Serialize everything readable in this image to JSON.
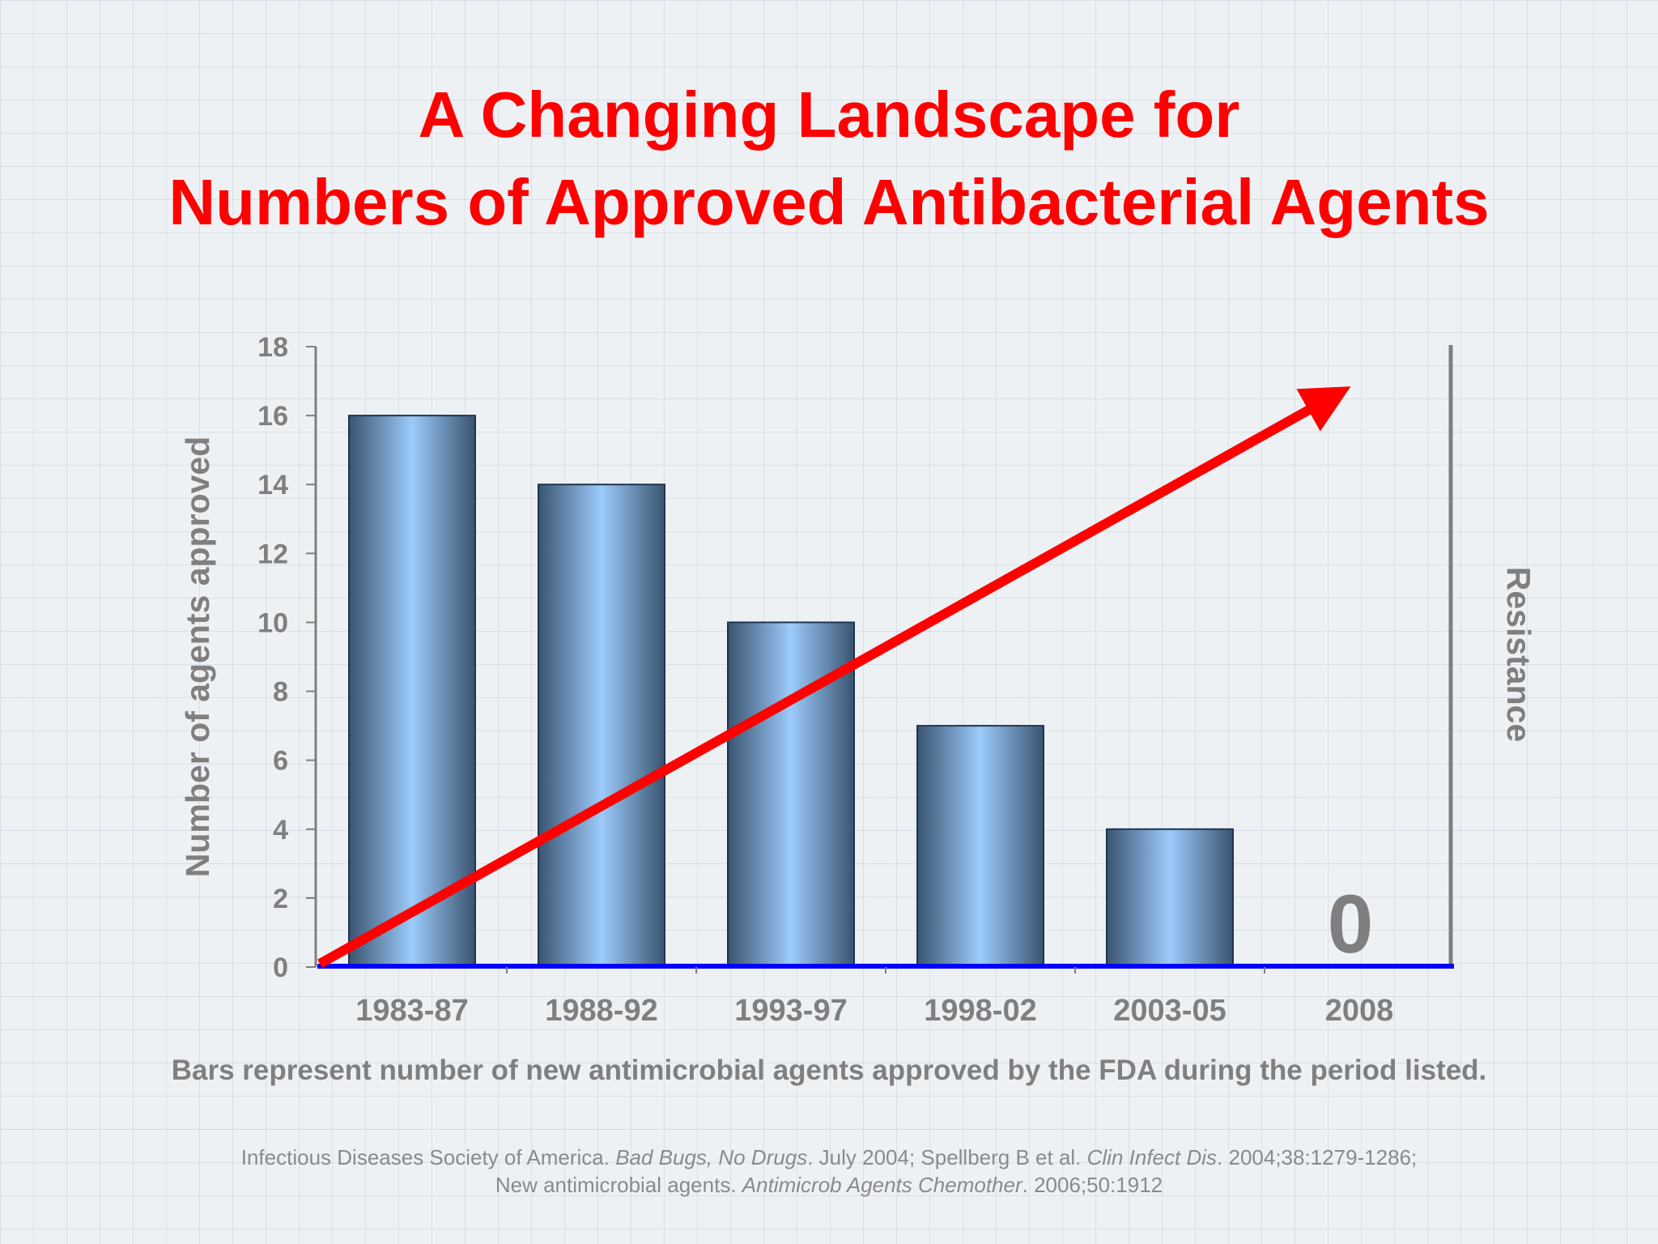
{
  "title": {
    "line1": "A Changing Landscape for",
    "line2": "Numbers of Approved Antibacterial Agents"
  },
  "chart_data": {
    "type": "bar",
    "categories": [
      "1983-87",
      "1988-92",
      "1993-97",
      "1998-02",
      "2003-05",
      "2008"
    ],
    "values": [
      16,
      14,
      10,
      7,
      4,
      0
    ],
    "ylabel": "Number of agents approved",
    "y2label": "Resistance",
    "ylim": [
      0,
      18
    ],
    "yticks": [
      0,
      2,
      4,
      6,
      8,
      10,
      12,
      14,
      16,
      18
    ],
    "annotation_zero": "0",
    "trend_arrow": "rising red arrow labeled by right axis Resistance",
    "colors": {
      "bar_center": "#9ccbfb",
      "bar_edge": "#3a5470",
      "arrow": "#ff0000",
      "baseline": "#0000ff",
      "axis_text": "#7f7f7f"
    },
    "grid": false
  },
  "caption": "Bars represent number of new antimicrobial agents approved by the FDA during the period listed.",
  "references": {
    "line1": {
      "a": "Infectious Diseases Society of America. ",
      "b": "Bad Bugs, No Drugs",
      "c": ". July 2004; Spellberg B et al. ",
      "d": "Clin Infect Dis",
      "e": ". 2004;38:1279-1286;"
    },
    "line2": {
      "a": "New antimicrobial agents.  ",
      "b": "Antimicrob Agents Chemother",
      "c": ". 2006;50:1912"
    }
  }
}
